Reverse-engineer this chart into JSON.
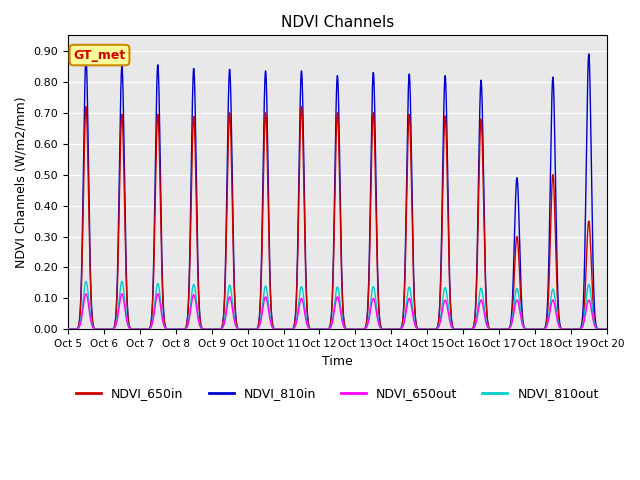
{
  "title": "NDVI Channels",
  "xlabel": "Time",
  "ylabel": "NDVI Channels (W/m2/mm)",
  "ylim": [
    0.0,
    0.95
  ],
  "yticks": [
    0.0,
    0.1,
    0.2,
    0.3,
    0.4,
    0.5,
    0.6,
    0.7,
    0.8,
    0.9
  ],
  "xtick_labels": [
    "Oct 5",
    "Oct 6",
    "Oct 7",
    "Oct 8",
    "Oct 9",
    "Oct 10",
    "Oct 11",
    "Oct 12",
    "Oct 13",
    "Oct 14",
    "Oct 15",
    "Oct 16",
    "Oct 17",
    "Oct 18",
    "Oct 19",
    "Oct 20"
  ],
  "num_days": 15,
  "color_650in": "#cc0000",
  "color_810in": "#0000cc",
  "color_650out": "#ff00ff",
  "color_810out": "#00cccc",
  "bg_color": "#e8e8e8",
  "gt_met_label": "GT_met",
  "gt_met_bg": "#ffff99",
  "gt_met_border": "#cc8800",
  "gt_met_text_color": "#cc0000",
  "peaks_810in": [
    0.875,
    0.85,
    0.855,
    0.843,
    0.84,
    0.835,
    0.835,
    0.82,
    0.83,
    0.825,
    0.82,
    0.805,
    0.49,
    0.815,
    0.89
  ],
  "peaks_650in": [
    0.72,
    0.695,
    0.695,
    0.688,
    0.7,
    0.7,
    0.72,
    0.7,
    0.7,
    0.695,
    0.69,
    0.68,
    0.3,
    0.5,
    0.35
  ],
  "peaks_650out": [
    0.115,
    0.115,
    0.115,
    0.112,
    0.105,
    0.105,
    0.1,
    0.105,
    0.1,
    0.1,
    0.095,
    0.095,
    0.095,
    0.095,
    0.095
  ],
  "peaks_810out": [
    0.155,
    0.155,
    0.148,
    0.145,
    0.143,
    0.14,
    0.138,
    0.137,
    0.138,
    0.137,
    0.135,
    0.133,
    0.132,
    0.13,
    0.145
  ]
}
